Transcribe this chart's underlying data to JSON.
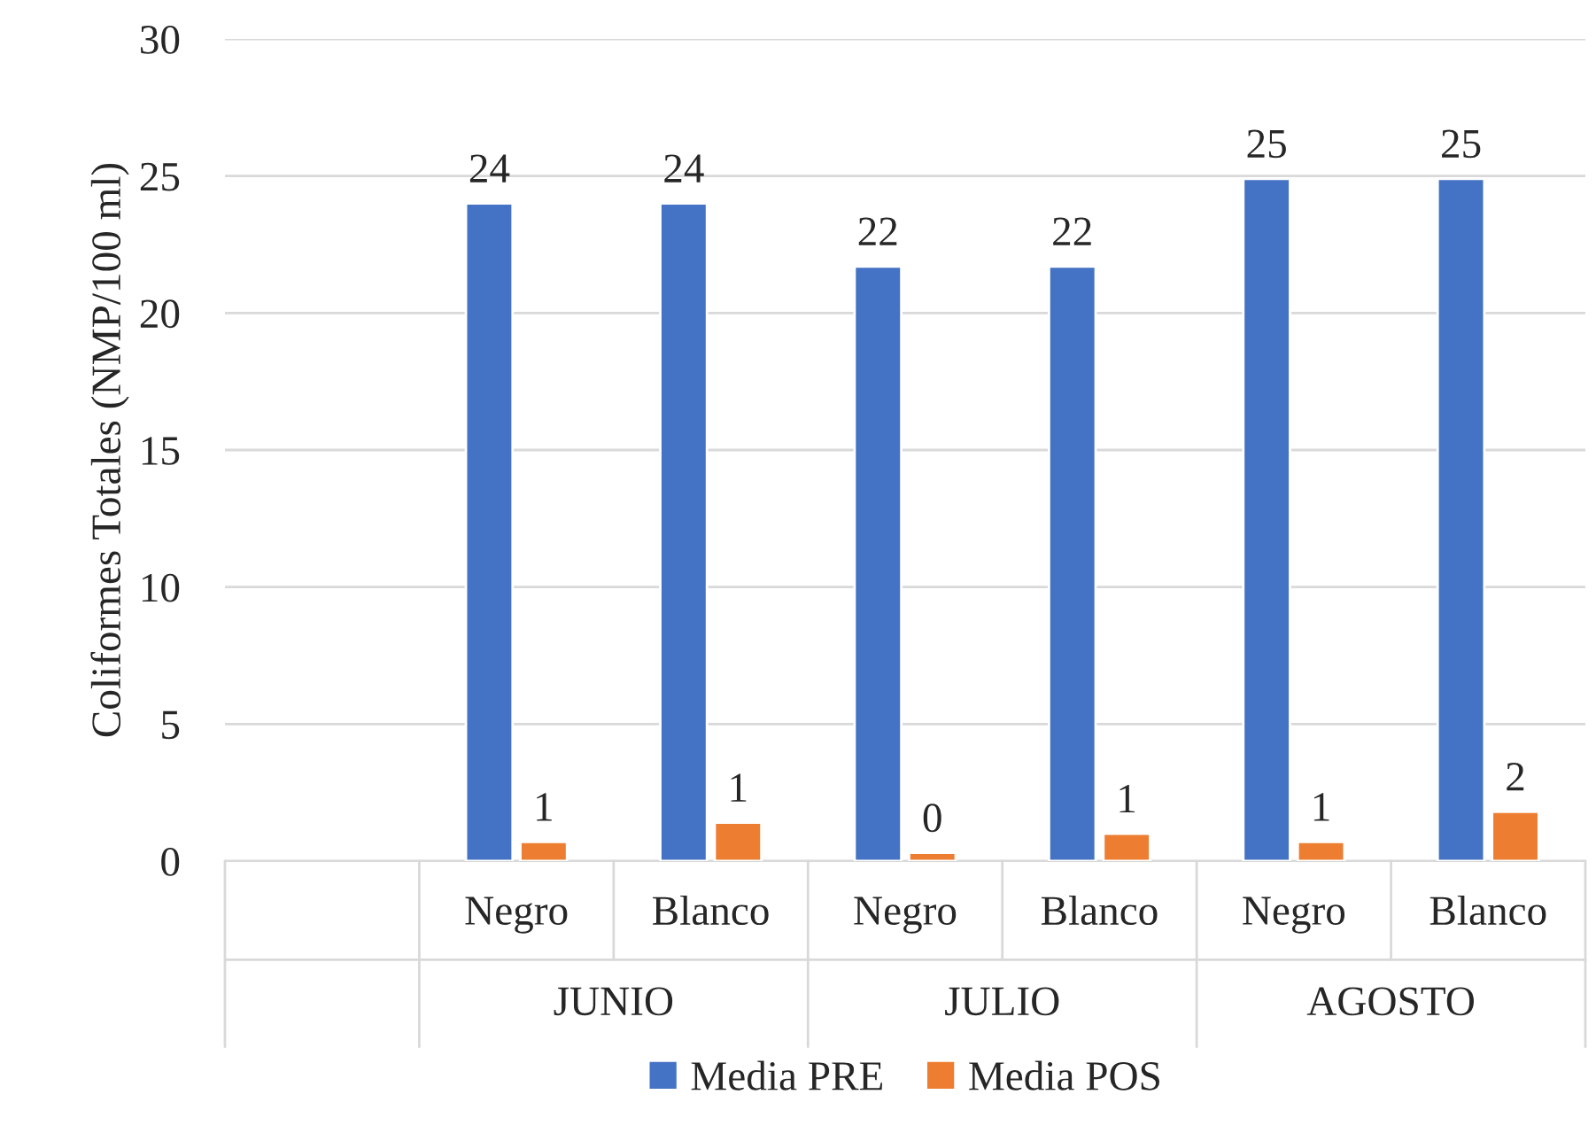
{
  "chart_data": {
    "type": "bar",
    "ylabel": "Coliformes Totales (NMP/100 ml)",
    "categories": [
      null,
      "Negro",
      "Blanco",
      "Negro",
      "Blanco",
      "Negro",
      "Blanco"
    ],
    "series": [
      {
        "name": "Media PRE",
        "color": "#4472c4",
        "values": [
          null,
          24,
          24,
          21.7,
          21.7,
          24.9,
          24.9
        ],
        "value_labels": [
          null,
          "24",
          "24",
          "22",
          "22",
          "25",
          "25"
        ]
      },
      {
        "name": "Media POS",
        "color": "#ed7d31",
        "values": [
          null,
          0.7,
          1.4,
          0.3,
          1.0,
          0.7,
          1.8
        ],
        "value_labels": [
          null,
          "1",
          "1",
          "0",
          "1",
          "1",
          "2"
        ]
      }
    ],
    "annotations": [
      "JUNIO",
      "JULIO",
      "AGOSTO"
    ],
    "ylim": [
      0,
      30
    ],
    "yticks": [
      0,
      5,
      10,
      15,
      20,
      25,
      30
    ],
    "grid": "y",
    "legend": "bottom"
  }
}
